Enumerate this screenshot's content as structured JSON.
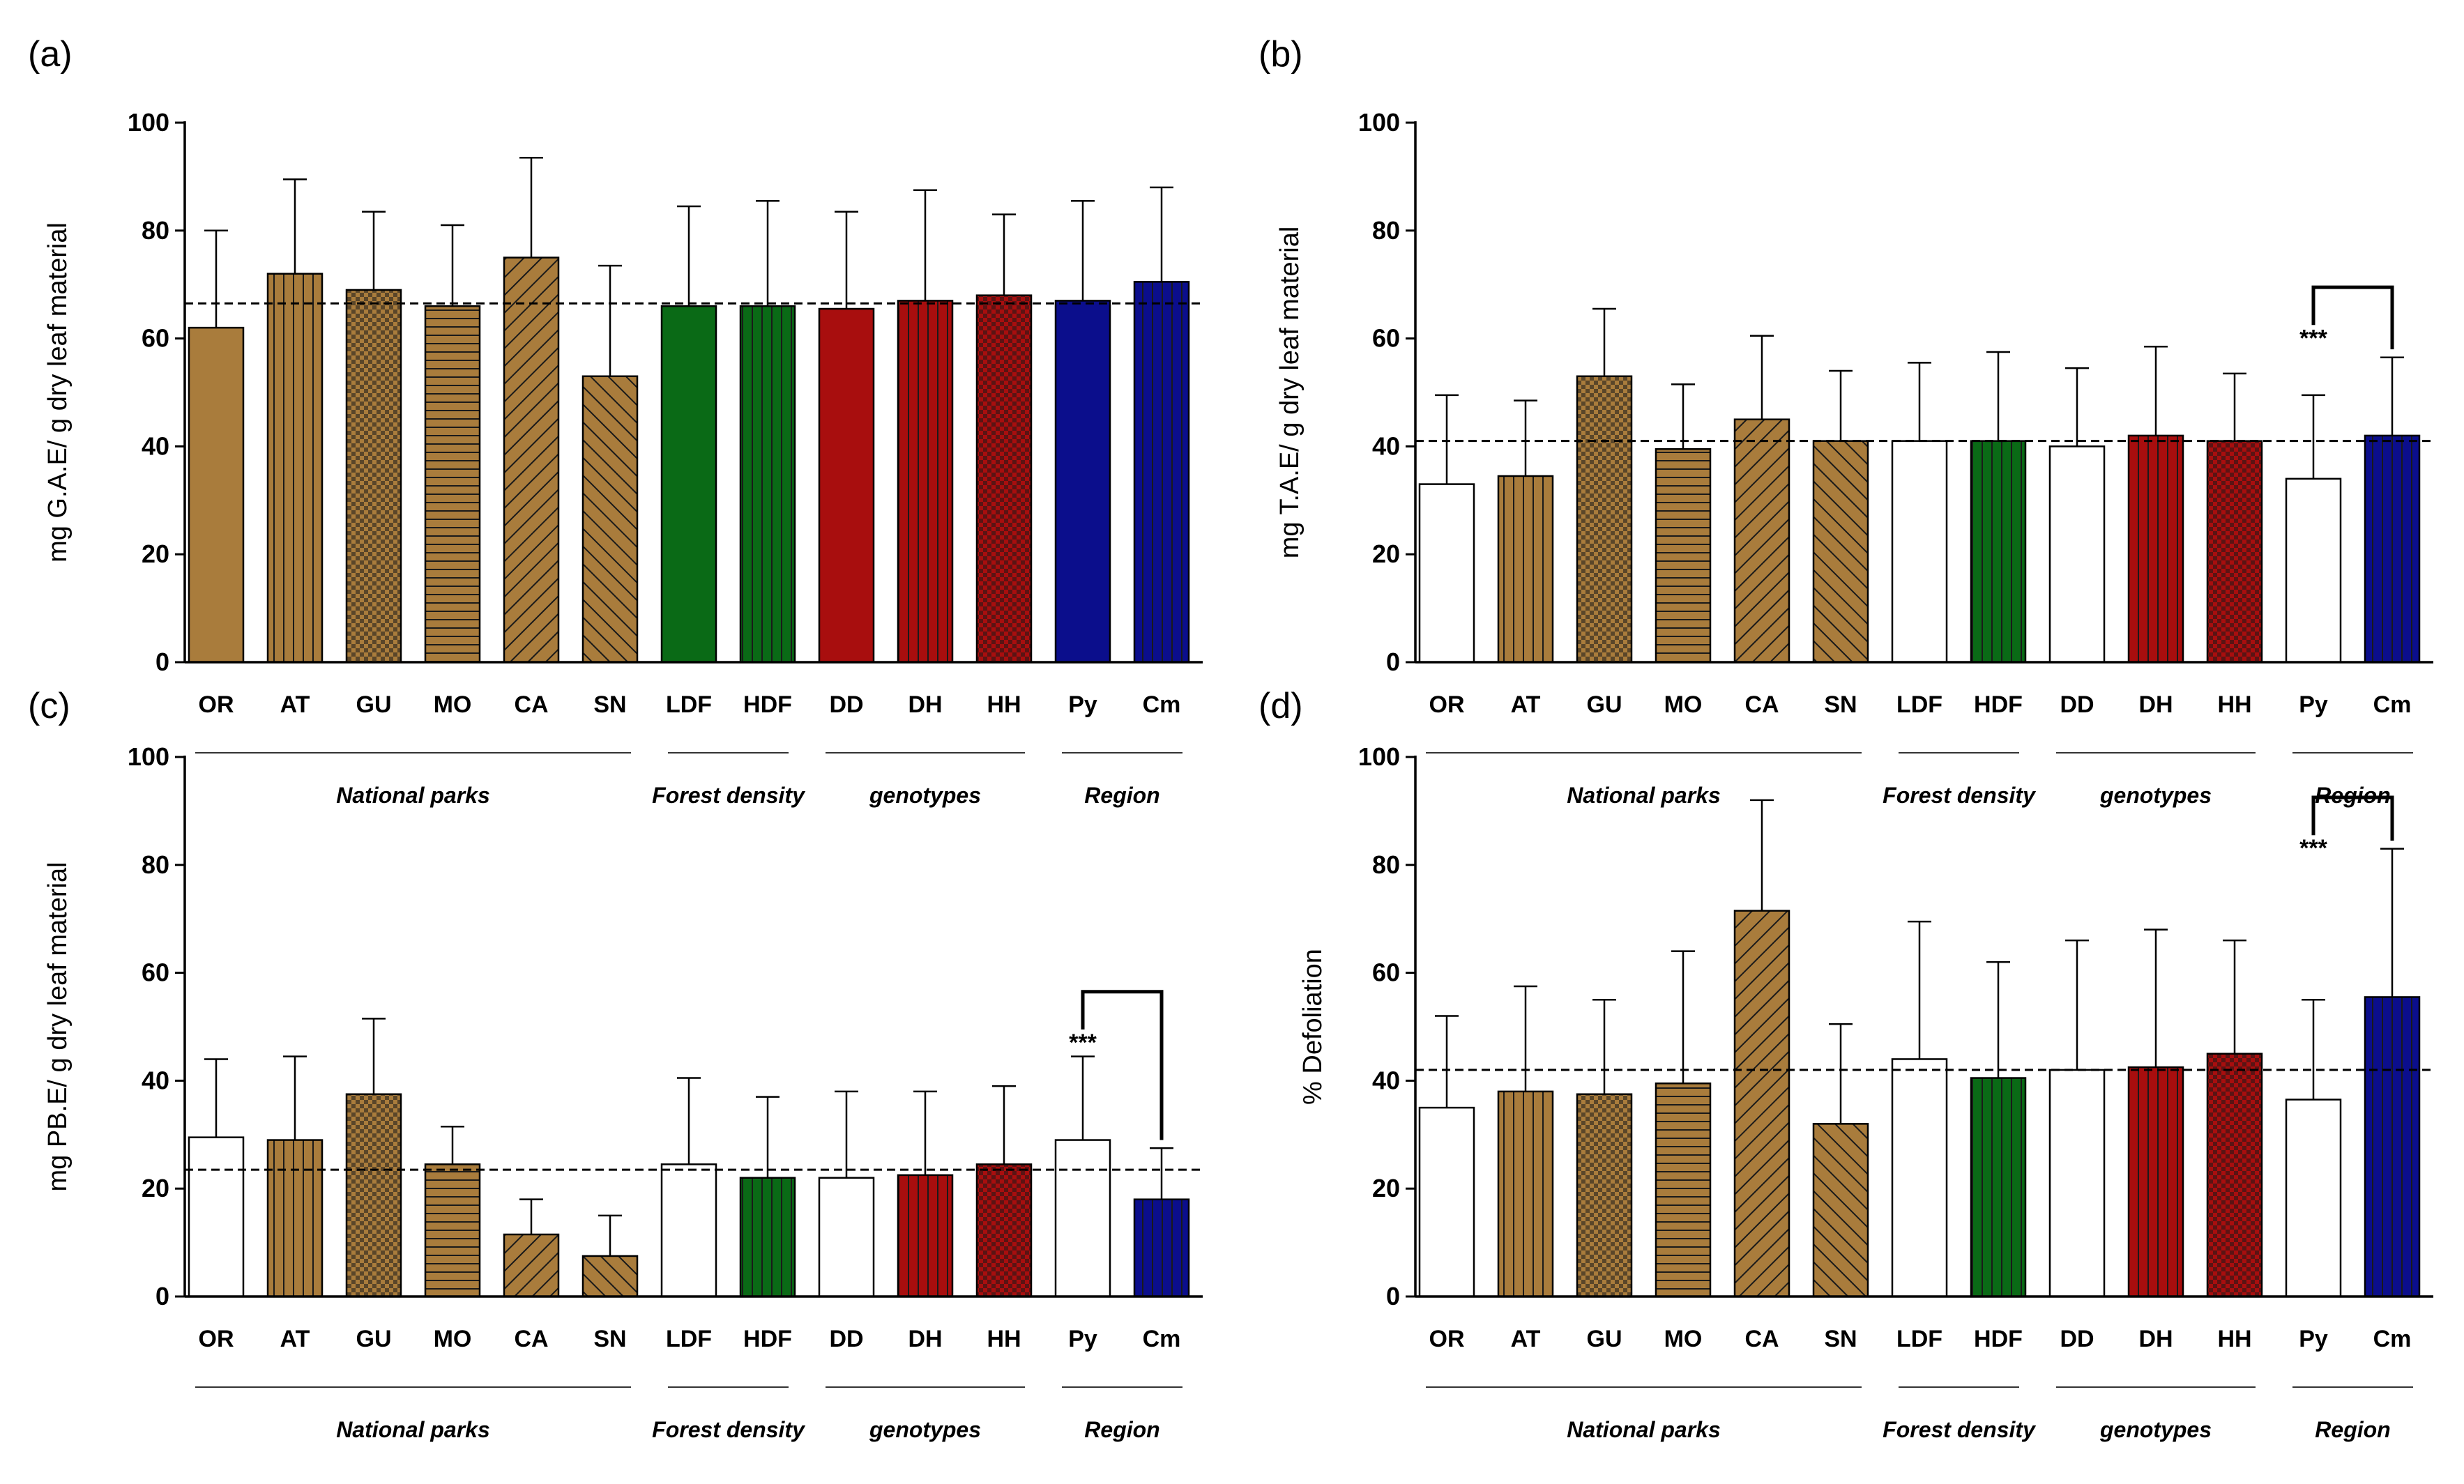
{
  "figure": {
    "categories": [
      "OR",
      "AT",
      "GU",
      "MO",
      "CA",
      "SN",
      "LDF",
      "HDF",
      "DD",
      "DH",
      "HH",
      "Py",
      "Cm"
    ],
    "groups": [
      {
        "label": "National parks",
        "start": 0,
        "end": 5
      },
      {
        "label": "Forest density",
        "start": 6,
        "end": 7
      },
      {
        "label": "genotypes",
        "start": 8,
        "end": 10
      },
      {
        "label": "Region",
        "start": 11,
        "end": 12
      }
    ],
    "colors": {
      "brown": "#A97C3C",
      "green": "#0A6A16",
      "red": "#A80E0E",
      "navy": "#0B0E8C"
    },
    "bar_styles": [
      "solid",
      "vertical",
      "checker",
      "horizontal",
      "diagonal-right",
      "diagonal-left",
      "solid",
      "vertical",
      "solid",
      "vertical",
      "checker",
      "solid",
      "vertical"
    ],
    "bar_colors": [
      "brown",
      "brown",
      "brown",
      "brown",
      "brown",
      "brown",
      "green",
      "green",
      "red",
      "red",
      "red",
      "navy",
      "navy"
    ]
  },
  "chart_data": [
    {
      "panel": "(a)",
      "type": "bar",
      "ylabel": "mg G.A.E/ g dry leaf material",
      "ylim": [
        0,
        100
      ],
      "yticks": [
        0,
        20,
        40,
        60,
        80,
        100
      ],
      "values": [
        62,
        72,
        69,
        66,
        75,
        53,
        66,
        66,
        65.5,
        67,
        68,
        67,
        70.5
      ],
      "errors": [
        18,
        17.5,
        14.5,
        15,
        18.5,
        20.5,
        18.5,
        19.5,
        18,
        20.5,
        15,
        18.5,
        17.5
      ],
      "reference_line": 66.5,
      "significance": null
    },
    {
      "panel": "(b)",
      "type": "bar",
      "ylabel": "mg T.A.E/ g dry leaf material",
      "ylim": [
        0,
        100
      ],
      "yticks": [
        0,
        20,
        40,
        60,
        80,
        100
      ],
      "values": [
        33,
        34.5,
        53,
        39.5,
        45,
        41,
        41,
        41,
        40,
        42,
        41,
        34,
        42
      ],
      "errors": [
        16.5,
        14,
        12.5,
        12,
        15.5,
        13,
        14.5,
        16.5,
        14.5,
        16.5,
        12.5,
        15.5,
        14.5
      ],
      "reference_line": 41,
      "significance": {
        "from": 11,
        "to": 12,
        "label": "***",
        "bracket_top": 69.5
      }
    },
    {
      "panel": "(c)",
      "type": "bar",
      "ylabel": "mg PB.E/ g dry leaf material",
      "ylim": [
        0,
        100
      ],
      "yticks": [
        0,
        20,
        40,
        60,
        80,
        100
      ],
      "values": [
        29.5,
        29,
        37.5,
        24.5,
        11.5,
        7.5,
        24.5,
        22,
        22,
        22.5,
        24.5,
        29,
        18
      ],
      "errors": [
        14.5,
        15.5,
        14,
        7,
        6.5,
        7.5,
        16,
        15,
        16,
        15.5,
        14.5,
        15.5,
        9.5
      ],
      "reference_line": 23.5,
      "significance": {
        "from": 11,
        "to": 12,
        "label": "***",
        "bracket_top": 56.5
      }
    },
    {
      "panel": "(d)",
      "type": "bar",
      "ylabel": "% Defoliation",
      "ylim": [
        0,
        100
      ],
      "yticks": [
        0,
        20,
        40,
        60,
        80,
        100
      ],
      "values": [
        35,
        38,
        37.5,
        39.5,
        71.5,
        32,
        44,
        40.5,
        42,
        42.5,
        45,
        36.5,
        55.5
      ],
      "errors": [
        17,
        19.5,
        17.5,
        24.5,
        20.5,
        18.5,
        25.5,
        21.5,
        24,
        25.5,
        21,
        18.5,
        27.5
      ],
      "reference_line": 42,
      "significance": {
        "from": 11,
        "to": 12,
        "label": "***",
        "bracket_top": 92.5
      }
    }
  ]
}
